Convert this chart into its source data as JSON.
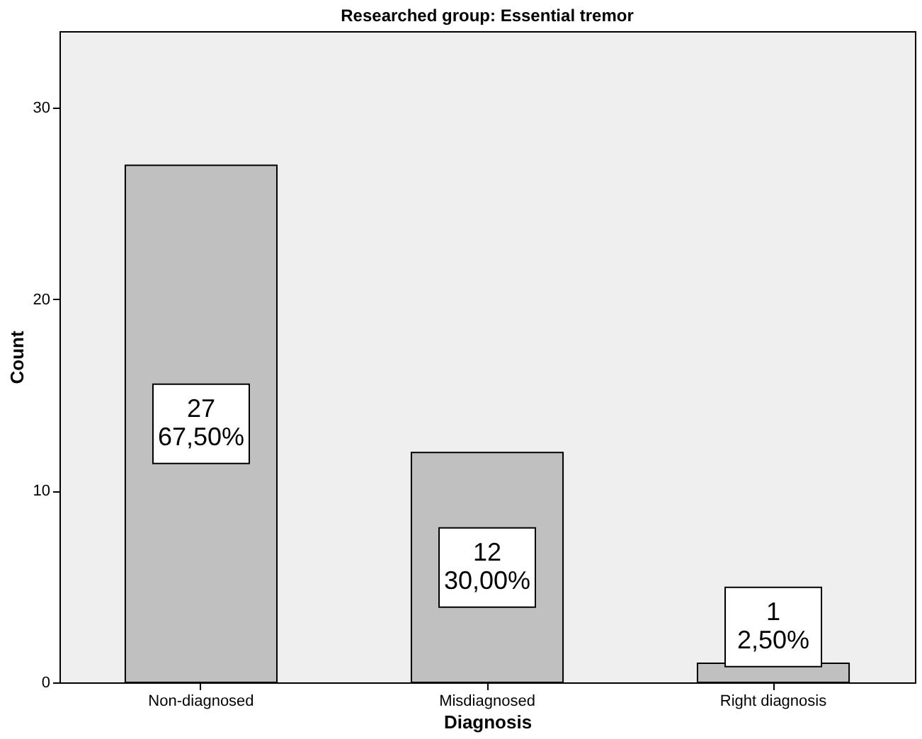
{
  "chart_data": {
    "type": "bar",
    "title": "Researched group: Essential tremor",
    "xlabel": "Diagnosis",
    "ylabel": "Count",
    "categories": [
      "Non-diagnosed",
      "Misdiagnosed",
      "Right diagnosis"
    ],
    "values": [
      27,
      12,
      1
    ],
    "value_labels": [
      "27\n67,50%",
      "12\n30,00%",
      "1\n2,50%"
    ],
    "color": "#c0c0c0",
    "ylim": [
      0,
      34
    ],
    "yticks": [
      0,
      10,
      20,
      30
    ],
    "grid": false
  }
}
